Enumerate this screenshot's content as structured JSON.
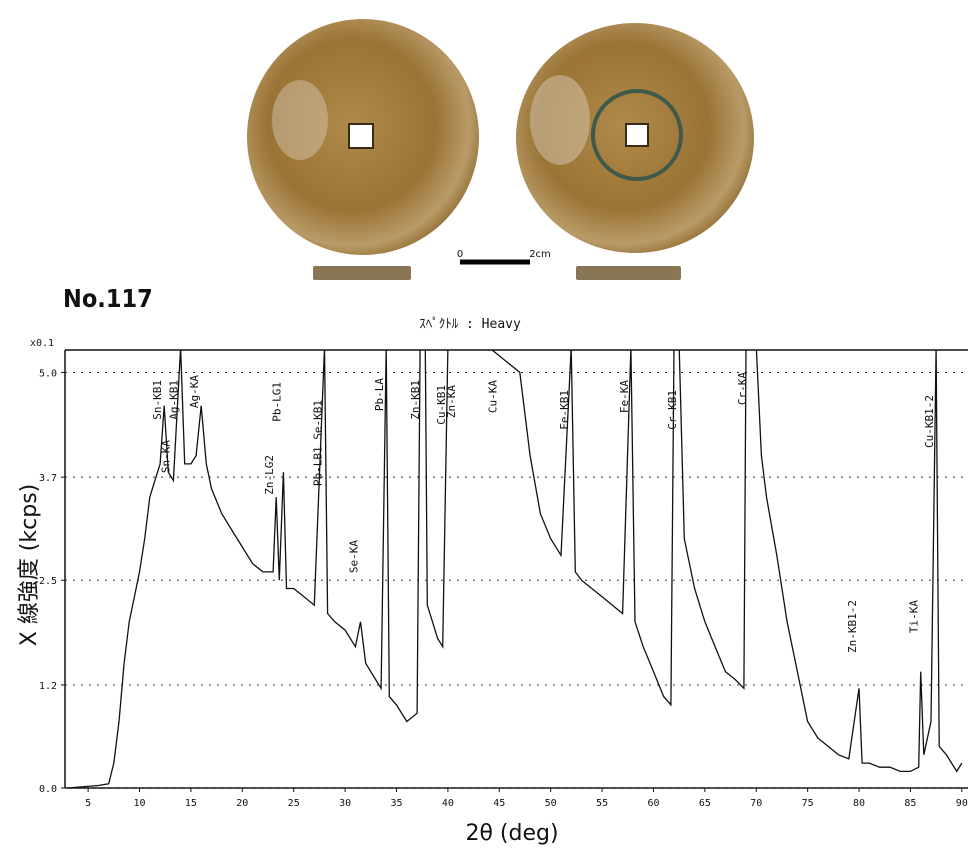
{
  "figure_label": "No.117",
  "scale_bar": {
    "start": "0",
    "end": "2cm"
  },
  "chart_data": {
    "type": "line",
    "title": "ｽﾍﾟｸﾄﾙ : Heavy",
    "multiplier_label": "x0.1",
    "x_label": "2θ (deg)",
    "y_label": "X 線強度 (kcps)",
    "color": "#111111",
    "grid": true,
    "xlim": [
      2.75,
      90.6
    ],
    "ylim": [
      0,
      5.27
    ],
    "xticks": [
      5,
      10,
      15,
      20,
      25,
      30,
      35,
      40,
      45,
      50,
      55,
      60,
      65,
      70,
      75,
      80,
      85,
      90
    ],
    "yticks": [
      {
        "value": 0,
        "label": "0.0"
      },
      {
        "value": 1.24,
        "label": "1.2"
      },
      2.5,
      {
        "value": 3.74,
        "label": "3.7"
      },
      {
        "value": 5,
        "label": "5.0"
      }
    ],
    "x": [
      3,
      6,
      7,
      7.5,
      8,
      8.5,
      9,
      9.5,
      10,
      10.5,
      11,
      11.5,
      12,
      12.4,
      12.8,
      13.3,
      14,
      14.4,
      15,
      15.5,
      16,
      16.5,
      17,
      18,
      19,
      20,
      21,
      22,
      23,
      23.3,
      23.6,
      24,
      24.3,
      25,
      26,
      27,
      28,
      28.3,
      29,
      30,
      31,
      31.5,
      32,
      33,
      33.5,
      34,
      34.3,
      35,
      36,
      37,
      37.3,
      37.8,
      38,
      38.5,
      39,
      39.5,
      40,
      40.5,
      44,
      47,
      48,
      49,
      50,
      51,
      52,
      52.4,
      53,
      54,
      55,
      56,
      57,
      57.8,
      58.2,
      59,
      60,
      61,
      61.7,
      62,
      62.5,
      63,
      64,
      65,
      66,
      67,
      68,
      68.8,
      69,
      70,
      70.5,
      71,
      72,
      73,
      74,
      75,
      76,
      77,
      78,
      79,
      80,
      80.3,
      81,
      82,
      83,
      84,
      85,
      85.8,
      86,
      86.3,
      87,
      87.5,
      87.8,
      88.5,
      89,
      89.5,
      90
    ],
    "values": [
      0,
      0.03,
      0.05,
      0.3,
      0.8,
      1.5,
      2.0,
      2.3,
      2.6,
      3.0,
      3.5,
      3.7,
      3.9,
      4.6,
      3.8,
      3.7,
      5.3,
      3.9,
      3.9,
      4.0,
      4.6,
      3.9,
      3.6,
      3.3,
      3.1,
      2.9,
      2.7,
      2.6,
      2.6,
      3.5,
      2.5,
      3.8,
      2.4,
      2.4,
      2.3,
      2.2,
      5.3,
      2.1,
      2.0,
      1.9,
      1.7,
      2.0,
      1.5,
      1.3,
      1.2,
      5.3,
      1.1,
      1.0,
      0.8,
      0.9,
      5.3,
      5.3,
      2.2,
      2.0,
      1.8,
      1.7,
      5.3,
      5.3,
      5.3,
      5.0,
      4.0,
      3.3,
      3.0,
      2.8,
      5.3,
      2.6,
      2.5,
      2.4,
      2.3,
      2.2,
      2.1,
      5.3,
      2.0,
      1.7,
      1.4,
      1.1,
      1.0,
      5.3,
      5.3,
      3.0,
      2.4,
      2.0,
      1.7,
      1.4,
      1.3,
      1.2,
      5.3,
      5.3,
      4.0,
      3.5,
      2.8,
      2.0,
      1.4,
      0.8,
      0.6,
      0.5,
      0.4,
      0.35,
      1.2,
      0.3,
      0.3,
      0.25,
      0.25,
      0.2,
      0.2,
      0.25,
      1.4,
      0.4,
      0.8,
      5.3,
      0.5,
      0.4,
      0.3,
      0.2,
      0.3
    ],
    "peaks": [
      {
        "label": "Sn-KB1",
        "x": 12.4
      },
      {
        "label": "Sn-KA",
        "x": 13.2
      },
      {
        "label": "Ag-KB1",
        "x": 14.0
      },
      {
        "label": "Ag-KA",
        "x": 16.0
      },
      {
        "label": "Zn-LG2",
        "x": 23.3
      },
      {
        "label": "Pb-LG1",
        "x": 24.0
      },
      {
        "label": "Pb-LB1 Se-KB1",
        "x": 28.0
      },
      {
        "label": "Se-KA",
        "x": 31.5
      },
      {
        "label": "Pb-LA",
        "x": 34.0
      },
      {
        "label": "Zn-KB1",
        "x": 37.5
      },
      {
        "label": "Cu-KB1",
        "x": 40.0
      },
      {
        "label": "Zn-KA",
        "x": 41.0
      },
      {
        "label": "Cu-KA",
        "x": 45.0
      },
      {
        "label": "Fe-KB1",
        "x": 52.0
      },
      {
        "label": "Fe-KA",
        "x": 57.8
      },
      {
        "label": "Cr-KB1",
        "x": 62.5
      },
      {
        "label": "Cr-KA",
        "x": 69.3
      },
      {
        "label": "Zn-KB1-2",
        "x": 80.0
      },
      {
        "label": "Ti-KA",
        "x": 86.0
      },
      {
        "label": "Cu-KB1-2",
        "x": 87.5
      }
    ]
  }
}
